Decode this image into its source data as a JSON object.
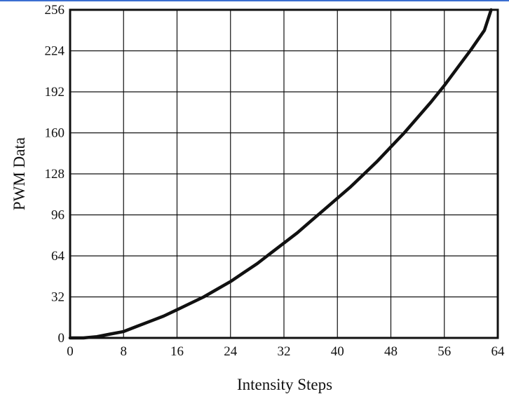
{
  "colors": {
    "top_rule": "#3b6fd1",
    "curve": "#111111",
    "frame": "#111111",
    "grid": "#111111"
  },
  "chart_data": {
    "type": "line",
    "xlabel": "Intensity Steps",
    "ylabel": "PWM Data",
    "xlim": [
      0,
      64
    ],
    "ylim": [
      0,
      256
    ],
    "x_ticks": [
      "0",
      "8",
      "16",
      "24",
      "32",
      "40",
      "48",
      "56",
      "64"
    ],
    "y_ticks": [
      "0",
      "32",
      "64",
      "96",
      "128",
      "160",
      "192",
      "224",
      "256"
    ],
    "grid": true,
    "series": [
      {
        "x": [
          0,
          2,
          4,
          6,
          8,
          10,
          12,
          14,
          16,
          18,
          20,
          22,
          24,
          26,
          28,
          30,
          32,
          34,
          36,
          38,
          40,
          42,
          44,
          46,
          48,
          50,
          52,
          54,
          56,
          58,
          60,
          62,
          63
        ],
        "y": [
          0,
          0,
          1,
          3,
          5,
          9,
          13,
          17,
          22,
          27,
          32,
          38,
          44,
          51,
          58,
          66,
          74,
          82,
          91,
          100,
          109,
          118,
          128,
          138,
          149,
          160,
          172,
          184,
          197,
          211,
          225,
          240,
          256
        ]
      }
    ]
  }
}
